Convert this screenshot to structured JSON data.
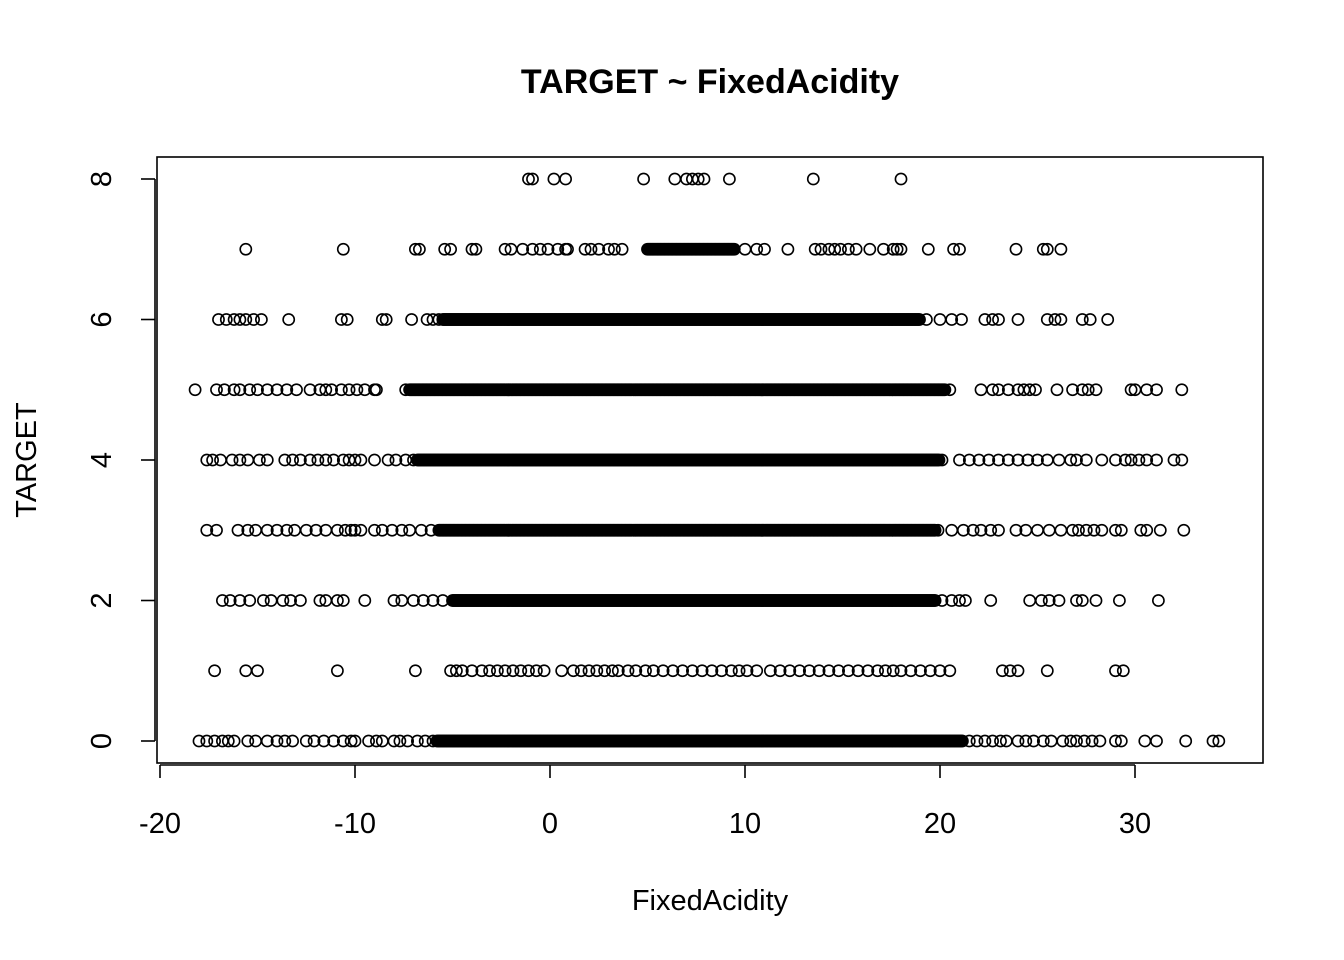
{
  "chart_data": {
    "type": "scatter",
    "title": "TARGET ~ FixedAcidity",
    "xlabel": "FixedAcidity",
    "ylabel": "TARGET",
    "xlim": [
      -20,
      35
    ],
    "ylim": [
      0,
      8
    ],
    "x_ticks": [
      -20,
      -10,
      0,
      10,
      20,
      30
    ],
    "y_ticks": [
      0,
      2,
      4,
      6,
      8
    ],
    "grid": false,
    "legend": "none",
    "marker": "open-circle",
    "rows": [
      {
        "y": 8,
        "dense_ranges": [],
        "x": [
          -1.1,
          -0.9,
          0.2,
          0.8,
          4.8,
          6.4,
          7.0,
          7.3,
          7.6,
          7.9,
          9.2,
          13.5,
          18.0
        ]
      },
      {
        "y": 7,
        "dense_ranges": [
          [
            5.0,
            9.5
          ]
        ],
        "x": [
          -15.6,
          -10.6,
          -6.9,
          -6.7,
          -5.4,
          -5.1,
          -4.0,
          -3.8,
          -2.3,
          -2.0,
          -1.4,
          -0.9,
          -0.5,
          -0.1,
          0.4,
          0.8,
          0.9,
          1.8,
          2.1,
          2.5,
          3.0,
          3.3,
          3.7,
          10.0,
          10.6,
          11.0,
          12.2,
          13.6,
          13.9,
          14.3,
          14.6,
          14.9,
          15.3,
          15.7,
          16.4,
          17.1,
          17.6,
          17.8,
          18.0,
          19.4,
          20.7,
          21.0,
          23.9,
          25.3,
          25.5,
          26.2
        ]
      },
      {
        "y": 6,
        "dense_ranges": [
          [
            -5.5,
            19.0
          ]
        ],
        "x": [
          -17.0,
          -16.6,
          -16.2,
          -15.9,
          -15.6,
          -15.2,
          -14.8,
          -13.4,
          -10.7,
          -10.4,
          -8.6,
          -8.4,
          -7.1,
          -6.3,
          -6.0,
          -5.7,
          19.3,
          20.0,
          20.6,
          21.1,
          22.3,
          22.7,
          23.0,
          24.0,
          25.5,
          25.9,
          26.2,
          27.3,
          27.7,
          28.6
        ]
      },
      {
        "y": 5,
        "dense_ranges": [
          [
            -7.2,
            20.3
          ]
        ],
        "x": [
          -18.2,
          -17.1,
          -16.7,
          -16.2,
          -15.9,
          -15.4,
          -15.0,
          -14.5,
          -14.0,
          -13.5,
          -13.0,
          -12.3,
          -11.8,
          -11.5,
          -11.2,
          -10.7,
          -10.3,
          -9.9,
          -9.5,
          -9.0,
          -8.9,
          -7.4,
          20.5,
          22.1,
          22.7,
          23.0,
          23.5,
          24.0,
          24.3,
          24.6,
          24.9,
          26.0,
          26.8,
          27.3,
          27.6,
          28.0,
          29.8,
          30.0,
          30.6,
          31.1,
          32.4
        ]
      },
      {
        "y": 4,
        "dense_ranges": [
          [
            -6.8,
            20.0
          ]
        ],
        "x": [
          -17.6,
          -17.3,
          -16.9,
          -16.3,
          -15.9,
          -15.5,
          -14.9,
          -14.5,
          -13.6,
          -13.2,
          -12.8,
          -12.3,
          -11.9,
          -11.5,
          -11.1,
          -10.6,
          -10.3,
          -10.0,
          -9.7,
          -9.0,
          -8.3,
          -7.9,
          -7.4,
          -7.0,
          20.1,
          21.0,
          21.5,
          22.0,
          22.5,
          23.0,
          23.5,
          24.0,
          24.5,
          25.0,
          25.5,
          26.1,
          26.7,
          27.0,
          27.5,
          28.3,
          29.0,
          29.5,
          29.8,
          30.2,
          30.6,
          31.1,
          32.0,
          32.4
        ]
      },
      {
        "y": 3,
        "dense_ranges": [
          [
            -5.7,
            19.8
          ]
        ],
        "x": [
          -17.6,
          -17.1,
          -16.0,
          -15.5,
          -15.1,
          -14.5,
          -14.0,
          -13.5,
          -13.1,
          -12.5,
          -12.0,
          -11.5,
          -10.9,
          -10.5,
          -10.2,
          -10.0,
          -9.7,
          -9.0,
          -8.6,
          -8.1,
          -7.6,
          -7.2,
          -6.6,
          -6.1,
          19.9,
          20.6,
          21.2,
          21.7,
          22.1,
          22.6,
          23.0,
          23.9,
          24.4,
          25.0,
          25.6,
          26.2,
          26.8,
          27.1,
          27.5,
          27.9,
          28.3,
          29.0,
          29.3,
          30.3,
          30.6,
          31.3,
          32.5
        ]
      },
      {
        "y": 2,
        "dense_ranges": [
          [
            -5.0,
            19.8
          ]
        ],
        "x": [
          -16.8,
          -16.4,
          -15.9,
          -15.4,
          -14.7,
          -14.3,
          -13.7,
          -13.3,
          -12.8,
          -11.8,
          -11.5,
          -10.9,
          -10.6,
          -9.5,
          -8.0,
          -7.6,
          -7.0,
          -6.5,
          -6.0,
          -5.5,
          20.1,
          20.6,
          21.0,
          21.3,
          22.6,
          24.6,
          25.2,
          25.6,
          26.1,
          27.0,
          27.3,
          28.0,
          29.2,
          31.2
        ]
      },
      {
        "y": 1,
        "dense_ranges": [],
        "x": [
          -17.2,
          -15.6,
          -15.0,
          -10.9,
          -6.9,
          -5.1,
          -4.8,
          -4.5,
          -4.0,
          -3.5,
          -3.1,
          -2.7,
          -2.3,
          -1.9,
          -1.5,
          -1.1,
          -0.7,
          -0.3,
          0.6,
          1.2,
          1.6,
          2.0,
          2.4,
          2.8,
          3.2,
          3.5,
          4.0,
          4.4,
          4.9,
          5.3,
          5.8,
          6.3,
          6.8,
          7.3,
          7.8,
          8.3,
          8.8,
          9.3,
          9.7,
          10.1,
          10.6,
          11.3,
          11.8,
          12.3,
          12.8,
          13.3,
          13.8,
          14.3,
          14.8,
          15.3,
          15.8,
          16.3,
          16.8,
          17.2,
          17.6,
          18.0,
          18.5,
          19.0,
          19.5,
          20.0,
          20.5,
          23.2,
          23.6,
          24.0,
          25.5,
          29.0,
          29.4
        ]
      },
      {
        "y": 0,
        "dense_ranges": [
          [
            -5.8,
            21.2
          ]
        ],
        "x": [
          -18.0,
          -17.6,
          -17.2,
          -16.8,
          -16.5,
          -16.2,
          -15.5,
          -15.1,
          -14.5,
          -14.0,
          -13.6,
          -13.2,
          -12.5,
          -12.1,
          -11.6,
          -11.1,
          -10.6,
          -10.2,
          -10.0,
          -9.3,
          -8.9,
          -8.6,
          -8.0,
          -7.7,
          -7.3,
          -6.8,
          -6.4,
          -6.0,
          21.5,
          21.9,
          22.3,
          22.7,
          23.1,
          23.4,
          24.0,
          24.4,
          24.8,
          25.3,
          25.7,
          26.3,
          26.7,
          27.0,
          27.4,
          27.8,
          28.2,
          29.0,
          29.3,
          30.5,
          31.1,
          32.6,
          34.0,
          34.3
        ]
      }
    ]
  }
}
